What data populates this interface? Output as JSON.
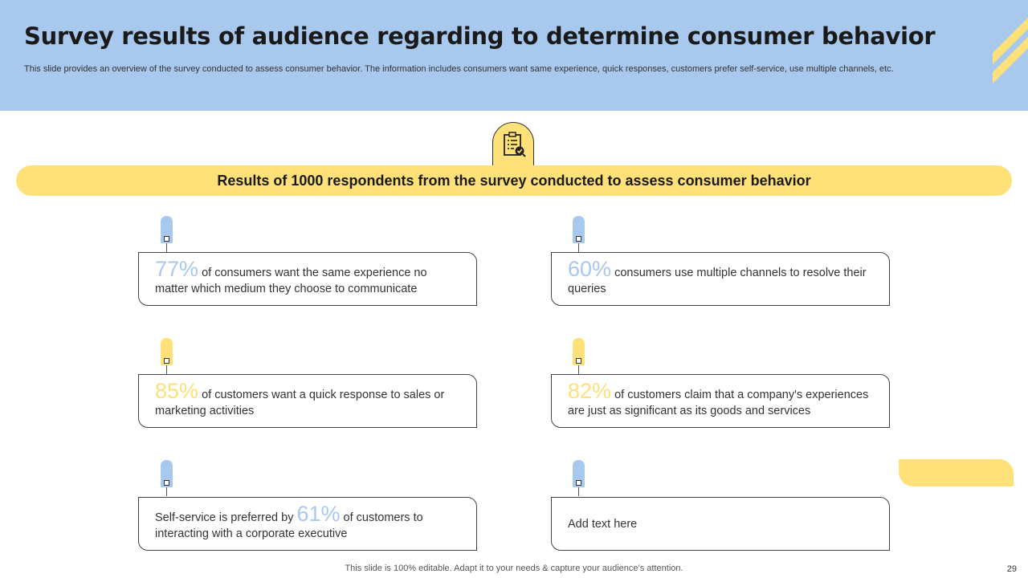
{
  "slide": {
    "title": "Survey results of audience regarding to determine consumer behavior",
    "subtitle": "This slide provides an overview of the survey conducted to assess consumer behavior. The information includes consumers want same experience,  quick responses, customers prefer self-service, use multiple channels, etc.",
    "badge_icon": "clipboard-check-icon",
    "banner": "Results of 1000 respondents from the survey conducted to assess consumer behavior",
    "footer": "This slide is 100% editable. Adapt it to your needs & capture your audience’s attention.",
    "page_number": "29"
  },
  "colors": {
    "blue": "#a8c8ee",
    "yellow": "#ffe17a"
  },
  "cards": [
    {
      "pct": "77%",
      "text": " of consumers want the same experience no matter which medium they choose to communicate"
    },
    {
      "pct": "60%",
      "text": " consumers use multiple channels to resolve their queries"
    },
    {
      "pct": "85%",
      "text": " of customers want a quick response to sales or marketing activities"
    },
    {
      "pct": "82%",
      "text": " of customers claim that a company's experiences are just as significant as its goods and services"
    },
    {
      "before": "Self-service is preferred by ",
      "pct": "61%",
      "after": " of customers to interacting with a corporate executive"
    },
    {
      "text": "Add text here"
    }
  ]
}
